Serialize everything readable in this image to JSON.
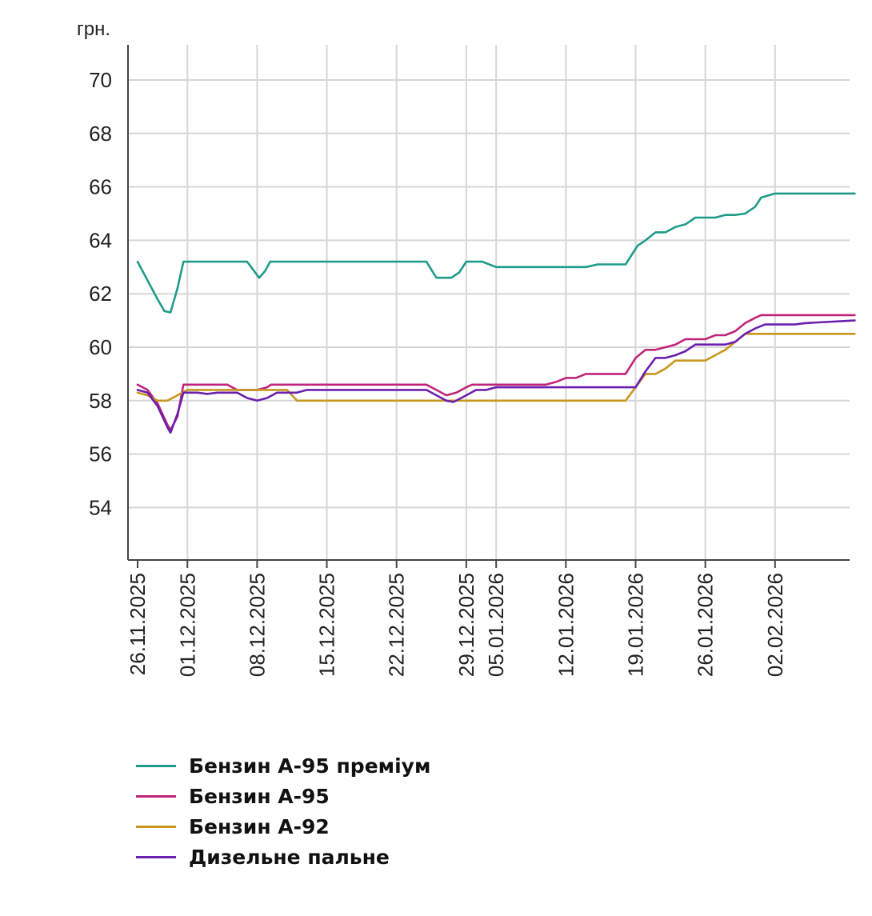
{
  "chart_data": {
    "type": "line",
    "title": "",
    "ylabel": "грн.",
    "xlabel": "",
    "ylim": [
      52.0,
      71.5
    ],
    "yticks": [
      54,
      56,
      58,
      60,
      62,
      64,
      66,
      68,
      70
    ],
    "grid": true,
    "x_range": [
      0,
      72
    ],
    "xticks": [
      {
        "label": "26.11.2025",
        "day": 0
      },
      {
        "label": "01.12.2025",
        "day": 5
      },
      {
        "label": "08.12.2025",
        "day": 12
      },
      {
        "label": "15.12.2025",
        "day": 19
      },
      {
        "label": "22.12.2025",
        "day": 26
      },
      {
        "label": "29.12.2025",
        "day": 33
      },
      {
        "label": "05.01.2026",
        "day": 36
      },
      {
        "label": "12.01.2026",
        "day": 43
      },
      {
        "label": "19.01.2026",
        "day": 50
      },
      {
        "label": "26.01.2026",
        "day": 57
      },
      {
        "label": "02.02.2026",
        "day": 64
      }
    ],
    "series": [
      {
        "name": "Бензин А-95 преміум",
        "color": "#1f9a8a",
        "points": [
          [
            0,
            63.2
          ],
          [
            1,
            62.5
          ],
          [
            2,
            61.8
          ],
          [
            2.7,
            61.35
          ],
          [
            3.3,
            61.3
          ],
          [
            4,
            62.2
          ],
          [
            4.6,
            63.2
          ],
          [
            5,
            63.2
          ],
          [
            11,
            63.2
          ],
          [
            12.2,
            62.6
          ],
          [
            12.8,
            62.85
          ],
          [
            13.3,
            63.2
          ],
          [
            29,
            63.2
          ],
          [
            30,
            62.6
          ],
          [
            31.5,
            62.6
          ],
          [
            32.3,
            62.8
          ],
          [
            33,
            63.2
          ],
          [
            34.6,
            63.2
          ],
          [
            36,
            63.0
          ],
          [
            45,
            63.0
          ],
          [
            46.2,
            63.1
          ],
          [
            49,
            63.1
          ],
          [
            50.2,
            63.8
          ],
          [
            51,
            64.0
          ],
          [
            52,
            64.3
          ],
          [
            53,
            64.3
          ],
          [
            54,
            64.5
          ],
          [
            55,
            64.6
          ],
          [
            56,
            64.85
          ],
          [
            58,
            64.85
          ],
          [
            59,
            64.95
          ],
          [
            60,
            64.95
          ],
          [
            61,
            65.0
          ],
          [
            62,
            65.25
          ],
          [
            62.6,
            65.6
          ],
          [
            63.5,
            65.7
          ],
          [
            64,
            65.75
          ],
          [
            72,
            65.75
          ]
        ]
      },
      {
        "name": "Бензин А-95",
        "color": "#c0237a",
        "points": [
          [
            0,
            58.6
          ],
          [
            1,
            58.4
          ],
          [
            2,
            57.9
          ],
          [
            3,
            57.1
          ],
          [
            3.3,
            56.9
          ],
          [
            4,
            57.4
          ],
          [
            4.6,
            58.6
          ],
          [
            5,
            58.6
          ],
          [
            9,
            58.6
          ],
          [
            10,
            58.4
          ],
          [
            11,
            58.4
          ],
          [
            12,
            58.4
          ],
          [
            13,
            58.5
          ],
          [
            13.4,
            58.6
          ],
          [
            29,
            58.6
          ],
          [
            30,
            58.4
          ],
          [
            31,
            58.2
          ],
          [
            32,
            58.3
          ],
          [
            33,
            58.5
          ],
          [
            33.6,
            58.6
          ],
          [
            41,
            58.6
          ],
          [
            42,
            58.7
          ],
          [
            43,
            58.85
          ],
          [
            44,
            58.85
          ],
          [
            45,
            59.0
          ],
          [
            49,
            59.0
          ],
          [
            50,
            59.6
          ],
          [
            51,
            59.9
          ],
          [
            52,
            59.9
          ],
          [
            53,
            60.0
          ],
          [
            54,
            60.1
          ],
          [
            55,
            60.3
          ],
          [
            57,
            60.3
          ],
          [
            58,
            60.45
          ],
          [
            59,
            60.45
          ],
          [
            60,
            60.6
          ],
          [
            61,
            60.9
          ],
          [
            62,
            61.1
          ],
          [
            62.6,
            61.2
          ],
          [
            72,
            61.2
          ]
        ]
      },
      {
        "name": "Бензин А-92",
        "color": "#c8961e",
        "points": [
          [
            0,
            58.3
          ],
          [
            1,
            58.2
          ],
          [
            2,
            58.0
          ],
          [
            3,
            58.0
          ],
          [
            4,
            58.2
          ],
          [
            5,
            58.4
          ],
          [
            13,
            58.4
          ],
          [
            14,
            58.4
          ],
          [
            15,
            58.4
          ],
          [
            16,
            58.0
          ],
          [
            49,
            58.0
          ],
          [
            50,
            58.5
          ],
          [
            51,
            59.0
          ],
          [
            52,
            59.0
          ],
          [
            53,
            59.2
          ],
          [
            54,
            59.5
          ],
          [
            57,
            59.5
          ],
          [
            58,
            59.7
          ],
          [
            59,
            59.9
          ],
          [
            60,
            60.2
          ],
          [
            61,
            60.5
          ],
          [
            72,
            60.5
          ]
        ]
      },
      {
        "name": "Дизельне пальне",
        "color": "#6a1fae",
        "points": [
          [
            0,
            58.4
          ],
          [
            1,
            58.3
          ],
          [
            2,
            57.8
          ],
          [
            3,
            57.0
          ],
          [
            3.3,
            56.8
          ],
          [
            4,
            57.5
          ],
          [
            4.6,
            58.3
          ],
          [
            6,
            58.3
          ],
          [
            7,
            58.25
          ],
          [
            8,
            58.3
          ],
          [
            10,
            58.3
          ],
          [
            11,
            58.1
          ],
          [
            12,
            58.0
          ],
          [
            13,
            58.1
          ],
          [
            14,
            58.3
          ],
          [
            16,
            58.3
          ],
          [
            17,
            58.4
          ],
          [
            29,
            58.4
          ],
          [
            30,
            58.2
          ],
          [
            31,
            58.0
          ],
          [
            31.7,
            57.95
          ],
          [
            32.5,
            58.1
          ],
          [
            33,
            58.2
          ],
          [
            34,
            58.4
          ],
          [
            35,
            58.4
          ],
          [
            36,
            58.5
          ],
          [
            50,
            58.5
          ],
          [
            51,
            59.1
          ],
          [
            52,
            59.6
          ],
          [
            53,
            59.6
          ],
          [
            54,
            59.7
          ],
          [
            55,
            59.85
          ],
          [
            56,
            60.1
          ],
          [
            58,
            60.1
          ],
          [
            59,
            60.1
          ],
          [
            60,
            60.2
          ],
          [
            61,
            60.5
          ],
          [
            62,
            60.7
          ],
          [
            63,
            60.85
          ],
          [
            66,
            60.85
          ],
          [
            67,
            60.9
          ],
          [
            72,
            61.0
          ]
        ]
      }
    ]
  }
}
